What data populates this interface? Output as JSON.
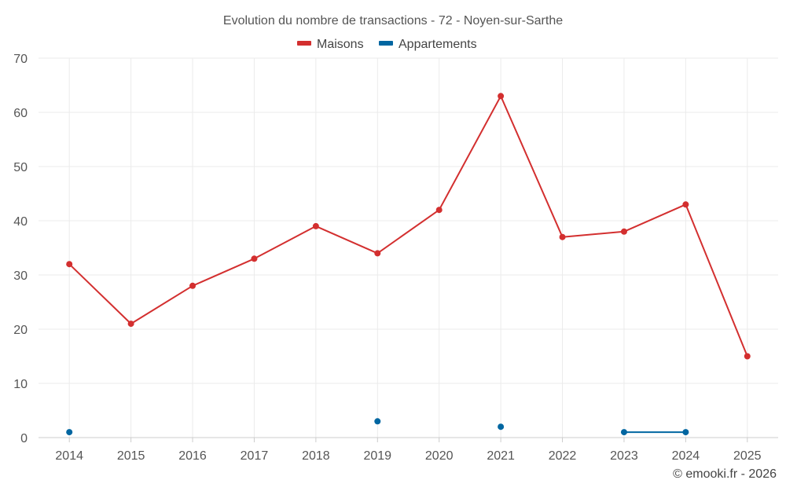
{
  "chart_data": {
    "type": "line",
    "title": "Evolution du nombre de transactions - 72 - Noyen-sur-Sarthe",
    "categories": [
      "2014",
      "2015",
      "2016",
      "2017",
      "2018",
      "2019",
      "2020",
      "2021",
      "2022",
      "2023",
      "2024",
      "2025"
    ],
    "series": [
      {
        "name": "Maisons",
        "color": "#d32f2f",
        "values": [
          32,
          21,
          28,
          33,
          39,
          34,
          42,
          63,
          37,
          38,
          43,
          15
        ]
      },
      {
        "name": "Appartements",
        "color": "#0066a1",
        "values": [
          1,
          null,
          null,
          null,
          null,
          3,
          null,
          2,
          null,
          1,
          1,
          null
        ]
      }
    ],
    "ylim": [
      0,
      70
    ],
    "yticks": [
      0,
      10,
      20,
      30,
      40,
      50,
      60,
      70
    ],
    "xlabel": "",
    "ylabel": "",
    "legend": "top-center",
    "grid": true
  },
  "credit": "© emooki.fr - 2026"
}
